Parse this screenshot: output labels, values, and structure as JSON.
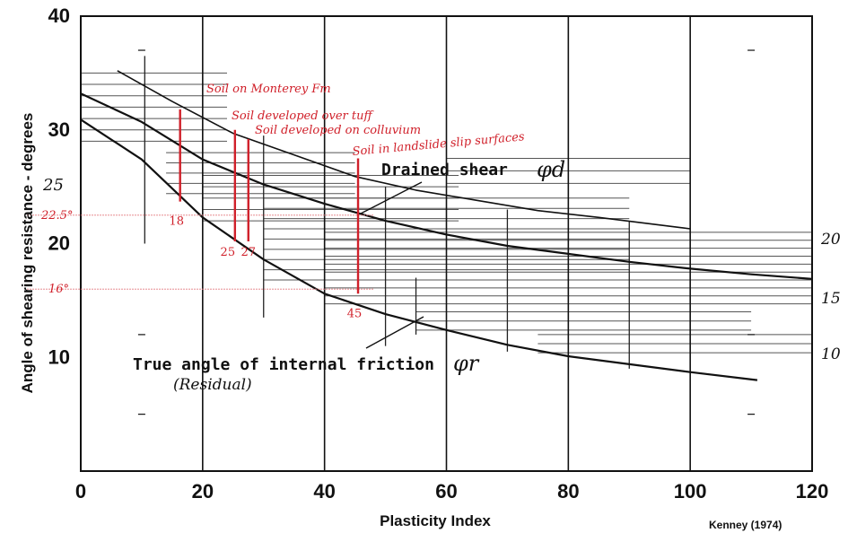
{
  "chart_data": {
    "type": "line",
    "xlabel": "Plasticity Index",
    "ylabel": "Angle of shearing resistance - degrees",
    "xlim": [
      0,
      120
    ],
    "ylim": [
      0,
      40
    ],
    "x_ticks": [
      "0",
      "20",
      "40",
      "60",
      "80",
      "100",
      "120"
    ],
    "y_ticks": [
      "10",
      "20",
      "30",
      "40"
    ],
    "left_handwritten_ticks": [
      "25",
      "22.5°",
      "16°"
    ],
    "right_handwritten_ticks": [
      "20",
      "15",
      "10"
    ],
    "series": [
      {
        "name": "Drained shear",
        "symbol": "φd",
        "color": "#111111",
        "x": [
          6,
          15,
          25,
          35,
          45,
          55,
          65,
          75,
          85,
          100
        ],
        "y": [
          35.2,
          32.5,
          29.7,
          27.8,
          25.9,
          24.7,
          23.8,
          22.9,
          22.3,
          21.3
        ]
      },
      {
        "name": "(unlabeled)",
        "color": "#111111",
        "x": [
          0,
          10,
          20,
          30,
          40,
          50,
          60,
          70,
          80,
          90,
          100,
          110,
          120
        ],
        "y": [
          33.2,
          30.7,
          27.4,
          25.2,
          23.5,
          22.0,
          20.8,
          19.8,
          19.1,
          18.4,
          17.8,
          17.3,
          16.9
        ]
      },
      {
        "name": "True angle of internal friction",
        "symbol": "φr",
        "sublabel": "(Residual)",
        "color": "#111111",
        "x": [
          0,
          10,
          20,
          30,
          40,
          50,
          60,
          70,
          80,
          90,
          100,
          111
        ],
        "y": [
          30.9,
          27.4,
          22.3,
          18.6,
          15.6,
          13.8,
          12.4,
          11.1,
          10.1,
          9.4,
          8.7,
          8.0
        ]
      }
    ],
    "red_annotations": {
      "notes": [
        "Soil on Monterey Fm",
        "Soil developed over tuff",
        "Soil developed on colluvium",
        "Soil in landslide slip surfaces"
      ],
      "markers": [
        {
          "label": "18",
          "x": 16.3,
          "y_top": 31.8,
          "y_bottom": 23.7
        },
        {
          "label": "25",
          "x": 25.3,
          "y_top": 30.0,
          "y_bottom": 20.2
        },
        {
          "label": "27",
          "x": 27.5,
          "y_top": 29.2,
          "y_bottom": 20.2
        },
        {
          "label": "45",
          "x": 45.5,
          "y_top": 27.5,
          "y_bottom": 15.6
        }
      ],
      "guides_y": [
        22.5,
        16
      ]
    },
    "credit": "Kenney (1974)"
  }
}
